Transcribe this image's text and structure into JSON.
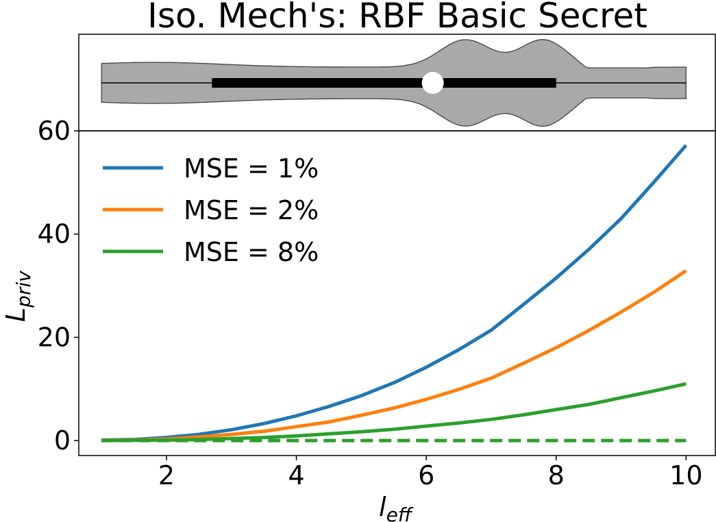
{
  "chart_data": {
    "title": "Iso. Mech's: RBF Basic Secret",
    "panels": [
      {
        "type": "violin",
        "orientation": "horizontal",
        "x_range": [
          1,
          10
        ],
        "median": 6.1,
        "q1": 2.7,
        "q3": 8.0,
        "min": 1.0,
        "max": 10.0,
        "colors": {
          "body": "#a9a9a9",
          "edge": "#404040",
          "box": "#000000",
          "median_marker": "#ffffff"
        }
      },
      {
        "type": "line",
        "xlabel_main": "l",
        "xlabel_sub": "eff",
        "ylabel_main": "L",
        "ylabel_sub": "priv",
        "xlim": [
          0.65,
          10.45
        ],
        "ylim": [
          -2.9,
          60
        ],
        "xticks": [
          2,
          4,
          6,
          8,
          10
        ],
        "xtick_labels": [
          "2",
          "4",
          "6",
          "8",
          "10"
        ],
        "yticks": [
          0,
          20,
          40,
          60
        ],
        "ytick_labels": [
          "0",
          "20",
          "40",
          "60"
        ],
        "legend_position": "upper-left",
        "series": [
          {
            "name": "MSE = 1%",
            "color": "#1f77b4",
            "style": "solid",
            "x": [
              1,
              1.5,
              2,
              2.5,
              3,
              3.5,
              4,
              4.5,
              5,
              5.5,
              6,
              6.5,
              7,
              7.5,
              8,
              8.5,
              9,
              9.5,
              10
            ],
            "y": [
              0.1,
              0.2,
              0.6,
              1.2,
              2.1,
              3.3,
              4.8,
              6.6,
              8.7,
              11.2,
              14.2,
              17.6,
              21.4,
              26.4,
              31.5,
              37.0,
              43.0,
              50.0,
              57.2
            ]
          },
          {
            "name": "MSE = 2%",
            "color": "#ff7f0e",
            "style": "solid",
            "x": [
              1,
              1.5,
              2,
              2.5,
              3,
              3.5,
              4,
              4.5,
              5,
              5.5,
              6,
              6.5,
              7,
              7.5,
              8,
              8.5,
              9,
              9.5,
              10
            ],
            "y": [
              0.05,
              0.1,
              0.3,
              0.7,
              1.2,
              1.8,
              2.7,
              3.6,
              4.9,
              6.3,
              8.0,
              9.9,
              12.1,
              15.0,
              18.0,
              21.3,
              24.9,
              28.7,
              32.9
            ]
          },
          {
            "name": "MSE = 8%",
            "color": "#2ca02c",
            "style": "solid",
            "x": [
              1,
              1.5,
              2,
              2.5,
              3,
              3.5,
              4,
              4.5,
              5,
              5.5,
              6,
              6.5,
              7,
              7.5,
              8,
              8.5,
              9,
              9.5,
              10
            ],
            "y": [
              0.0,
              0.05,
              0.1,
              0.2,
              0.4,
              0.6,
              0.9,
              1.3,
              1.7,
              2.2,
              2.8,
              3.4,
              4.1,
              5.0,
              6.0,
              7.0,
              8.3,
              9.6,
              11.0
            ]
          },
          {
            "name": "",
            "color": "#2ca02c",
            "style": "dashed",
            "x": [
              1,
              10
            ],
            "y": [
              0,
              0
            ]
          }
        ]
      }
    ]
  }
}
